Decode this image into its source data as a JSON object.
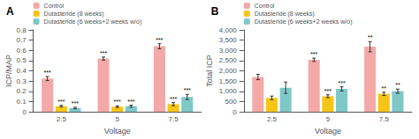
{
  "chart_data": [
    {
      "type": "bar",
      "title": "A",
      "xlabel": "Voltage",
      "ylabel": "ICP/MAP",
      "categories": [
        "2.5",
        "5",
        "7.5"
      ],
      "ylim": [
        0,
        0.8
      ],
      "yticks": [
        0,
        0.1,
        0.2,
        0.3,
        0.4,
        0.5,
        0.6,
        0.7,
        0.8
      ],
      "grid": false,
      "legend": "upper left",
      "series": [
        {
          "name": "Control",
          "color": "#F4A9A8",
          "values": [
            0.325,
            0.52,
            0.64
          ],
          "errors": [
            0.02,
            0.015,
            0.025
          ],
          "annotations": [
            "***",
            "***",
            "***"
          ]
        },
        {
          "name": "Dutasteride (8 weeks)",
          "color": "#F5C518",
          "values": [
            0.055,
            0.05,
            0.075
          ],
          "errors": [
            0.008,
            0.008,
            0.015
          ],
          "annotations": [
            "***",
            "***",
            "***"
          ]
        },
        {
          "name": "Dutasteride (6 weeks+2 weeks w/o)",
          "color": "#7EC8C8",
          "values": [
            0.037,
            0.055,
            0.145
          ],
          "errors": [
            0.007,
            0.01,
            0.025
          ],
          "annotations": [
            "***",
            "***",
            "***"
          ]
        }
      ]
    },
    {
      "type": "bar",
      "title": "B",
      "xlabel": "Voltage",
      "ylabel": "Total ICP",
      "categories": [
        "2.5",
        "5",
        "7.5"
      ],
      "ylim": [
        0,
        4000
      ],
      "yticks": [
        0,
        500,
        {
          "value": 1000,
          "label": "1,000"
        },
        {
          "value": 1500,
          "label": "1,500"
        },
        {
          "value": 2000,
          "label": "2,000"
        },
        {
          "value": 2500,
          "label": "2,500"
        },
        {
          "value": 3000,
          "label": "3,000"
        },
        {
          "value": 3500,
          "label": "3,500"
        },
        {
          "value": 4000,
          "label": "4,000"
        }
      ],
      "grid": false,
      "legend": "upper left",
      "series": [
        {
          "name": "Control",
          "color": "#F4A9A8",
          "values": [
            1700,
            2540,
            3180
          ],
          "errors": [
            130,
            80,
            250
          ],
          "annotations": [
            null,
            "***",
            "**"
          ]
        },
        {
          "name": "Dutasteride (8 weeks)",
          "color": "#F5C518",
          "values": [
            680,
            760,
            880
          ],
          "errors": [
            90,
            70,
            80
          ],
          "annotations": [
            null,
            "***",
            "**"
          ]
        },
        {
          "name": "Dutasteride (6 weeks+2 weeks w/o)",
          "color": "#7EC8C8",
          "values": [
            1175,
            1120,
            1010
          ],
          "errors": [
            280,
            100,
            100
          ],
          "annotations": [
            null,
            "***",
            "**"
          ]
        }
      ]
    }
  ]
}
